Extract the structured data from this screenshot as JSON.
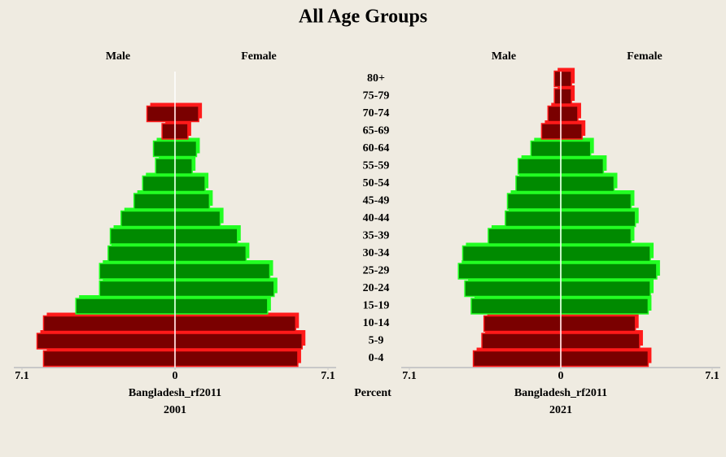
{
  "title": "All Age Groups",
  "center_label": "Percent",
  "categories": [
    "0-4",
    "5-9",
    "10-14",
    "15-19",
    "20-24",
    "25-29",
    "30-34",
    "35-39",
    "40-44",
    "45-49",
    "50-54",
    "55-59",
    "60-64",
    "65-69",
    "70-74",
    "75-79",
    "80+"
  ],
  "bar_colors": [
    "red",
    "red",
    "red",
    "green",
    "green",
    "green",
    "green",
    "green",
    "green",
    "green",
    "green",
    "green",
    "green",
    "red",
    "red",
    "red",
    "red"
  ],
  "chart_data": [
    {
      "type": "pyramid",
      "xlabel": "Bangladesh_rf2011",
      "year": "2001",
      "xlim": [
        -7.1,
        7.1
      ],
      "xticks": [
        {
          "value": -7.1,
          "label": "7.1"
        },
        0,
        7.1
      ],
      "series": [
        {
          "name": "Male",
          "side": "left",
          "values": [
            6.1,
            6.4,
            6.1,
            4.6,
            3.5,
            3.5,
            3.1,
            3.0,
            2.5,
            1.9,
            1.5,
            0.9,
            1.0,
            0.6,
            1.3,
            0,
            0
          ]
        },
        {
          "name": "Female",
          "side": "right",
          "values": [
            5.7,
            5.9,
            5.6,
            4.3,
            4.6,
            4.4,
            3.3,
            2.9,
            2.1,
            1.6,
            1.4,
            0.8,
            1.0,
            0.6,
            1.1,
            0,
            0
          ]
        }
      ]
    },
    {
      "type": "pyramid",
      "xlabel": "Bangladesh_rf2011",
      "year": "2021",
      "xlim": [
        -7.1,
        7.1
      ],
      "xticks": [
        {
          "value": -7.1,
          "label": "7.1"
        },
        0,
        7.1
      ],
      "series": [
        {
          "name": "Male",
          "side": "left",
          "values": [
            4.1,
            3.7,
            3.6,
            4.2,
            4.5,
            4.8,
            4.6,
            3.4,
            2.6,
            2.5,
            2.1,
            2.0,
            1.4,
            0.9,
            0.6,
            0.3,
            0.3
          ]
        },
        {
          "name": "Female",
          "side": "right",
          "values": [
            4.1,
            3.7,
            3.5,
            4.1,
            4.2,
            4.5,
            4.2,
            3.3,
            3.5,
            3.3,
            2.5,
            2.0,
            1.4,
            1.0,
            0.8,
            0.5,
            0.5
          ]
        }
      ]
    }
  ]
}
